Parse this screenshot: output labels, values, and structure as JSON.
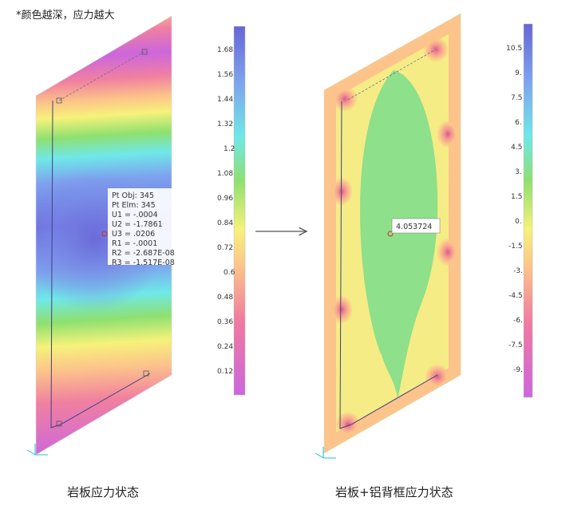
{
  "note": "*颜色越深，应力越大",
  "left_panel": {
    "caption": "岩板应力状态",
    "legend_ticks": [
      "1.68",
      "1.56",
      "1.44",
      "1.32",
      "1.2",
      "1.08",
      "0.96",
      "0.84",
      "0.72",
      "0.6",
      "0.48",
      "0.36",
      "0.24",
      "0.12"
    ],
    "tooltip": [
      "Pt Obj: 345",
      "Pt Elm: 345",
      "U1 = -.0004",
      "U2 = -1.7861",
      "U3 = .0206",
      "R1 = -.0001",
      "R2 = -2.687E-08",
      "R3 = -1.517E-08"
    ]
  },
  "right_panel": {
    "caption": "岩板+铝背框应力状态",
    "legend_ticks": [
      "10.5",
      "9.",
      "7.5",
      "6.",
      "4.5",
      "3.",
      "1.5",
      "0.",
      "-1.5",
      "-3.",
      "-4.5",
      "-6.",
      "-7.5",
      "-9."
    ],
    "tooltip": [
      "4.053724"
    ]
  },
  "colors": {
    "scale": [
      "#cc66dd",
      "#dd6fb8",
      "#ec7aa0",
      "#f48c90",
      "#f8a890",
      "#fcc48a",
      "#fde28a",
      "#f6f27a",
      "#c8ee6e",
      "#8fe070",
      "#6ae0a8",
      "#6fe8e8",
      "#78c6f4",
      "#7ea2ee",
      "#7a7ae2",
      "#6666d6"
    ],
    "arrow": "#555555"
  }
}
